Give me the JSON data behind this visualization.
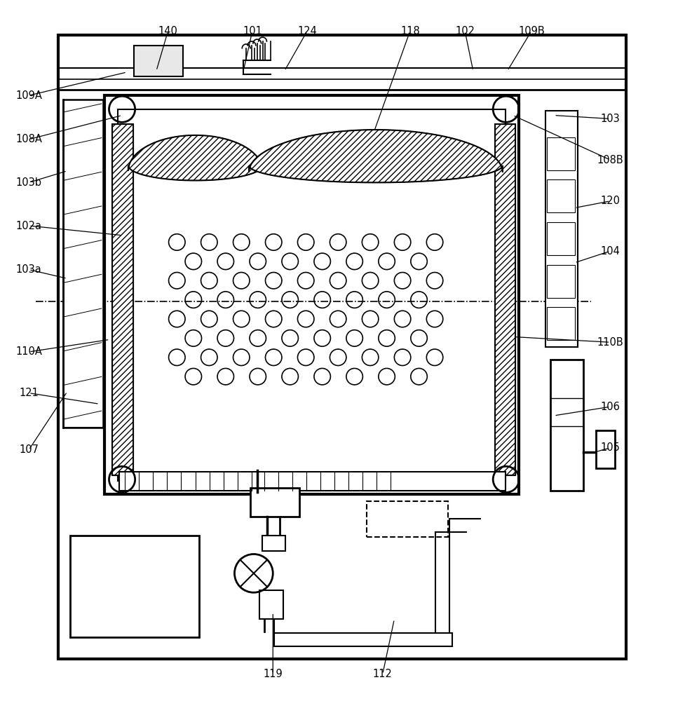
{
  "bg_color": "#ffffff",
  "figsize": [
    9.78,
    10.0
  ],
  "dpi": 100,
  "labels_data": {
    "140": [
      0.245,
      0.966,
      0.228,
      0.908
    ],
    "101": [
      0.368,
      0.966,
      0.355,
      0.908
    ],
    "124": [
      0.448,
      0.966,
      0.415,
      0.908
    ],
    "118": [
      0.598,
      0.966,
      0.535,
      0.79
    ],
    "102": [
      0.678,
      0.966,
      0.69,
      0.908
    ],
    "109B": [
      0.775,
      0.966,
      0.74,
      0.908
    ],
    "109A": [
      0.042,
      0.872,
      0.185,
      0.906
    ],
    "108A": [
      0.042,
      0.808,
      0.178,
      0.843
    ],
    "103b": [
      0.042,
      0.745,
      0.098,
      0.762
    ],
    "102a": [
      0.042,
      0.682,
      0.178,
      0.668
    ],
    "103a": [
      0.042,
      0.618,
      0.098,
      0.605
    ],
    "110A": [
      0.042,
      0.498,
      0.16,
      0.516
    ],
    "121": [
      0.042,
      0.438,
      0.145,
      0.422
    ],
    "107": [
      0.042,
      0.355,
      0.098,
      0.44
    ],
    "103": [
      0.89,
      0.838,
      0.808,
      0.843
    ],
    "108B": [
      0.89,
      0.778,
      0.748,
      0.843
    ],
    "120": [
      0.89,
      0.718,
      0.838,
      0.708
    ],
    "104": [
      0.89,
      0.645,
      0.838,
      0.628
    ],
    "110B": [
      0.89,
      0.512,
      0.748,
      0.52
    ],
    "106": [
      0.89,
      0.418,
      0.808,
      0.405
    ],
    "105": [
      0.89,
      0.358,
      0.868,
      0.352
    ],
    "119": [
      0.398,
      0.028,
      0.398,
      0.118
    ],
    "112": [
      0.558,
      0.028,
      0.575,
      0.108
    ]
  }
}
